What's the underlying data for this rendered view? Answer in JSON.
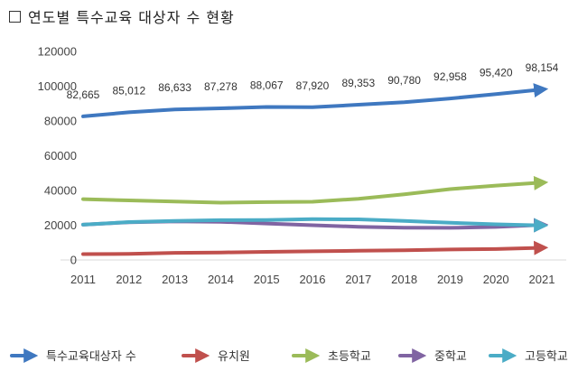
{
  "title": {
    "marker": "□",
    "text": "연도별 특수교육 대상자 수 현황"
  },
  "chart_data": {
    "type": "line",
    "title": "연도별 특수교육 대상자 수 현황",
    "xlabel": "",
    "ylabel": "",
    "ylim": [
      0,
      120000
    ],
    "yticks": [
      0,
      20000,
      40000,
      60000,
      80000,
      100000,
      120000
    ],
    "ytick_labels": [
      "0",
      "20000",
      "40000",
      "60000",
      "80000",
      "100000",
      "120000"
    ],
    "grid": false,
    "legend_position": "bottom",
    "x": [
      "2011",
      "2012",
      "2013",
      "2014",
      "2015",
      "2016",
      "2017",
      "2018",
      "2019",
      "2020",
      "2021"
    ],
    "series": [
      {
        "name": "특수교육대상자 수",
        "color": "#3f78c0",
        "values": [
          82665,
          85012,
          86633,
          87278,
          88067,
          87920,
          89353,
          90780,
          92958,
          95420,
          98154
        ],
        "labels": [
          "82,665",
          "85,012",
          "86,633",
          "87,278",
          "88,067",
          "87,920",
          "89,353",
          "90,780",
          "92,958",
          "95,420",
          "98,154"
        ]
      },
      {
        "name": "유치원",
        "color": "#c0504d",
        "values": [
          3400,
          3500,
          4100,
          4300,
          4700,
          5000,
          5300,
          5600,
          6000,
          6300,
          7000
        ]
      },
      {
        "name": "초등학교",
        "color": "#9bbb59",
        "values": [
          35000,
          34300,
          33600,
          33000,
          33300,
          33500,
          35200,
          37800,
          40800,
          42800,
          44500
        ]
      },
      {
        "name": "중학교",
        "color": "#8064a2",
        "values": [
          20300,
          21700,
          22200,
          22000,
          21000,
          20000,
          19100,
          18600,
          18500,
          19000,
          20200
        ]
      },
      {
        "name": "고등학교",
        "color": "#4bacc6",
        "values": [
          20300,
          21800,
          22500,
          22900,
          23000,
          23500,
          23400,
          22500,
          21400,
          20500,
          19900
        ]
      }
    ]
  }
}
